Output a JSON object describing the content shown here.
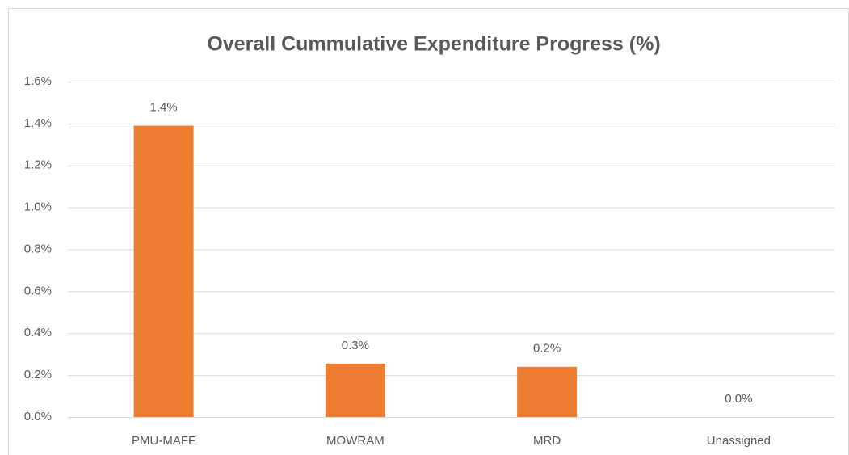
{
  "chart_data": {
    "type": "bar",
    "title": "Overall Cummulative Expenditure Progress (%)",
    "categories": [
      "PMU-MAFF",
      "MOWRAM",
      "MRD",
      "Unassigned"
    ],
    "values": [
      1.39,
      0.255,
      0.24,
      0
    ],
    "value_labels": [
      "1.4%",
      "0.3%",
      "0.2%",
      "0.0%"
    ],
    "color": "#ed7d31",
    "ylim": [
      0,
      1.6
    ],
    "yticks": [
      {
        "value": 0,
        "label": "0.0%"
      },
      {
        "value": 0.2,
        "label": "0.2%"
      },
      {
        "value": 0.4,
        "label": "0.4%"
      },
      {
        "value": 0.6,
        "label": "0.6%"
      },
      {
        "value": 0.8,
        "label": "0.8%"
      },
      {
        "value": 1.0,
        "label": "1.0%"
      },
      {
        "value": 1.2,
        "label": "1.2%"
      },
      {
        "value": 1.4,
        "label": "1.4%"
      },
      {
        "value": 1.6,
        "label": "1.6%"
      }
    ],
    "grid": true
  }
}
